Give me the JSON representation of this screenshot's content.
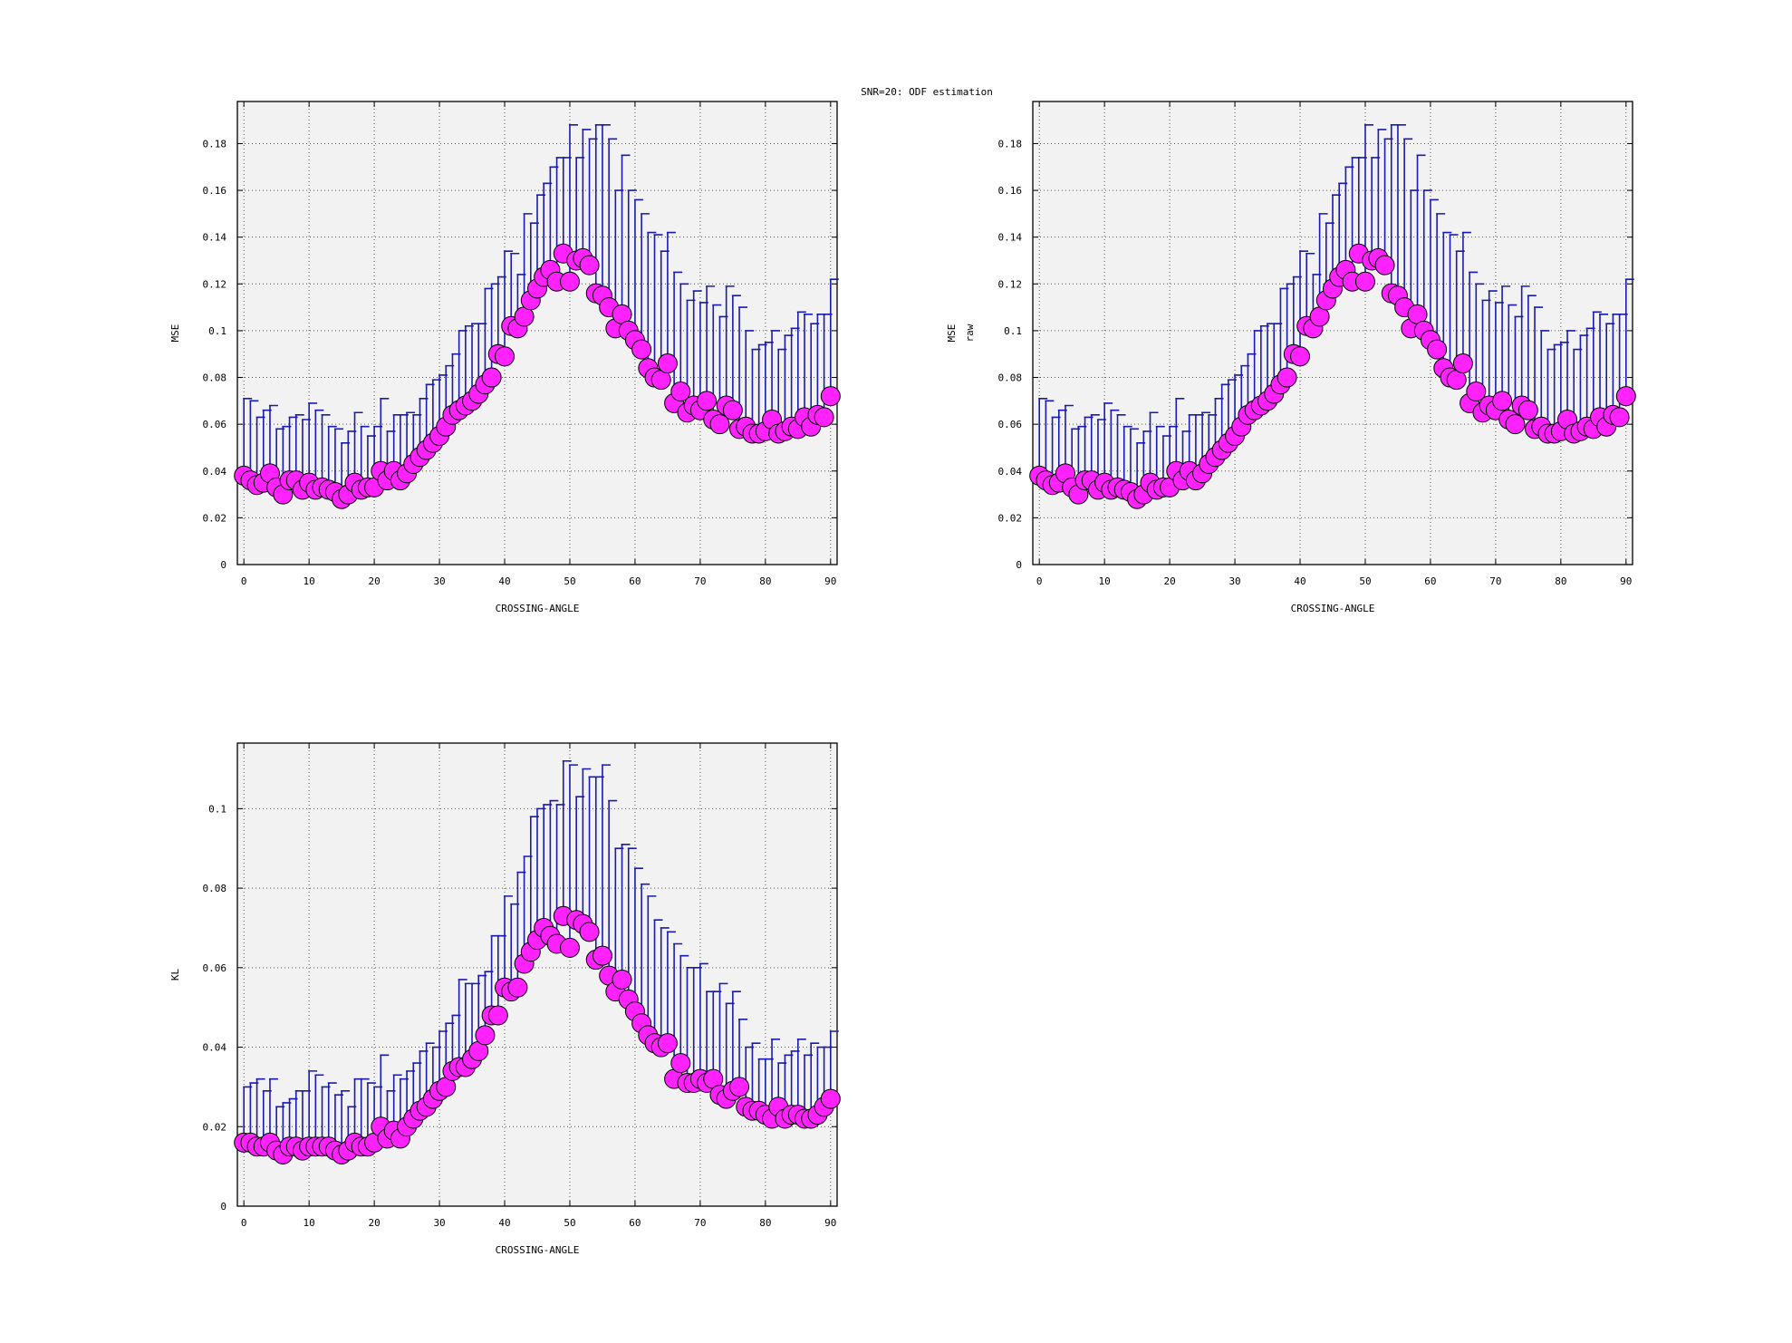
{
  "suptitle": "SNR=20: ODF estimation",
  "colors": {
    "marker": "#ff22ff",
    "errorbar": "#1a1ab0",
    "plot_bg": "#f2f2f2"
  },
  "chart_data": [
    {
      "type": "scatter",
      "title": "",
      "xlabel": "CROSSING-ANGLE",
      "ylabel": "MSE",
      "ylabel_sub": "",
      "xlim": [
        -1,
        91
      ],
      "ylim": [
        0,
        0.198
      ],
      "xticks": [
        0,
        10,
        20,
        30,
        40,
        50,
        60,
        70,
        80,
        90
      ],
      "yticks": [
        0,
        0.02,
        0.04,
        0.06,
        0.08,
        0.1,
        0.12,
        0.14,
        0.16,
        0.18
      ],
      "ytick_labels": [
        "0",
        "0.02",
        "0.04",
        "0.06",
        "0.08",
        "0.1",
        "0.12",
        "0.14",
        "0.16",
        "0.18"
      ],
      "grid": true,
      "x": [
        0,
        1,
        2,
        3,
        4,
        5,
        6,
        7,
        8,
        9,
        10,
        11,
        12,
        13,
        14,
        15,
        16,
        17,
        18,
        19,
        20,
        21,
        22,
        23,
        24,
        25,
        26,
        27,
        28,
        29,
        30,
        31,
        32,
        33,
        34,
        35,
        36,
        37,
        38,
        39,
        40,
        41,
        42,
        43,
        44,
        45,
        46,
        47,
        48,
        49,
        50,
        51,
        52,
        53,
        54,
        55,
        56,
        57,
        58,
        59,
        60,
        61,
        62,
        63,
        64,
        65,
        66,
        67,
        68,
        69,
        70,
        71,
        72,
        73,
        74,
        75,
        76,
        77,
        78,
        79,
        80,
        81,
        82,
        83,
        84,
        85,
        86,
        87,
        88,
        89,
        90
      ],
      "y": [
        0.038,
        0.036,
        0.034,
        0.035,
        0.039,
        0.033,
        0.03,
        0.036,
        0.036,
        0.032,
        0.035,
        0.032,
        0.033,
        0.032,
        0.031,
        0.028,
        0.03,
        0.035,
        0.032,
        0.033,
        0.033,
        0.04,
        0.036,
        0.04,
        0.036,
        0.039,
        0.043,
        0.046,
        0.049,
        0.052,
        0.055,
        0.059,
        0.064,
        0.066,
        0.068,
        0.07,
        0.073,
        0.077,
        0.08,
        0.09,
        0.089,
        0.102,
        0.101,
        0.106,
        0.113,
        0.118,
        0.123,
        0.126,
        0.121,
        0.133,
        0.121,
        0.13,
        0.131,
        0.128,
        0.116,
        0.115,
        0.11,
        0.101,
        0.107,
        0.1,
        0.096,
        0.092,
        0.084,
        0.08,
        0.079,
        0.086,
        0.069,
        0.074,
        0.065,
        0.068,
        0.066,
        0.07,
        0.062,
        0.06,
        0.068,
        0.066,
        0.058,
        0.059,
        0.056,
        0.056,
        0.057,
        0.062,
        0.056,
        0.057,
        0.059,
        0.058,
        0.063,
        0.059,
        0.064,
        0.063,
        0.072
      ],
      "yerr_upper": [
        0.071,
        0.07,
        0.063,
        0.066,
        0.068,
        0.058,
        0.059,
        0.063,
        0.064,
        0.062,
        0.069,
        0.066,
        0.064,
        0.059,
        0.058,
        0.052,
        0.057,
        0.065,
        0.059,
        0.055,
        0.059,
        0.071,
        0.057,
        0.064,
        0.064,
        0.065,
        0.064,
        0.071,
        0.077,
        0.079,
        0.081,
        0.085,
        0.09,
        0.1,
        0.102,
        0.103,
        0.103,
        0.118,
        0.12,
        0.123,
        0.134,
        0.133,
        0.124,
        0.15,
        0.146,
        0.158,
        0.163,
        0.17,
        0.174,
        0.174,
        0.188,
        0.174,
        0.186,
        0.182,
        0.188,
        0.188,
        0.182,
        0.16,
        0.175,
        0.16,
        0.156,
        0.15,
        0.142,
        0.141,
        0.134,
        0.142,
        0.125,
        0.12,
        0.113,
        0.117,
        0.112,
        0.119,
        0.111,
        0.106,
        0.119,
        0.115,
        0.11,
        0.1,
        0.092,
        0.094,
        0.095,
        0.1,
        0.092,
        0.098,
        0.101,
        0.108,
        0.107,
        0.103,
        0.107,
        0.107,
        0.122
      ]
    },
    {
      "type": "scatter",
      "title": "",
      "xlabel": "CROSSING-ANGLE",
      "ylabel": "MSE",
      "ylabel_sub": "raw",
      "xlim": [
        -1,
        91
      ],
      "ylim": [
        0,
        0.198
      ],
      "xticks": [
        0,
        10,
        20,
        30,
        40,
        50,
        60,
        70,
        80,
        90
      ],
      "yticks": [
        0,
        0.02,
        0.04,
        0.06,
        0.08,
        0.1,
        0.12,
        0.14,
        0.16,
        0.18
      ],
      "ytick_labels": [
        "0",
        "0.02",
        "0.04",
        "0.06",
        "0.08",
        "0.1",
        "0.12",
        "0.14",
        "0.16",
        "0.18"
      ],
      "grid": true,
      "x": [
        0,
        1,
        2,
        3,
        4,
        5,
        6,
        7,
        8,
        9,
        10,
        11,
        12,
        13,
        14,
        15,
        16,
        17,
        18,
        19,
        20,
        21,
        22,
        23,
        24,
        25,
        26,
        27,
        28,
        29,
        30,
        31,
        32,
        33,
        34,
        35,
        36,
        37,
        38,
        39,
        40,
        41,
        42,
        43,
        44,
        45,
        46,
        47,
        48,
        49,
        50,
        51,
        52,
        53,
        54,
        55,
        56,
        57,
        58,
        59,
        60,
        61,
        62,
        63,
        64,
        65,
        66,
        67,
        68,
        69,
        70,
        71,
        72,
        73,
        74,
        75,
        76,
        77,
        78,
        79,
        80,
        81,
        82,
        83,
        84,
        85,
        86,
        87,
        88,
        89,
        90
      ],
      "y": [
        0.038,
        0.036,
        0.034,
        0.035,
        0.039,
        0.033,
        0.03,
        0.036,
        0.036,
        0.032,
        0.035,
        0.032,
        0.033,
        0.032,
        0.031,
        0.028,
        0.03,
        0.035,
        0.032,
        0.033,
        0.033,
        0.04,
        0.036,
        0.04,
        0.036,
        0.039,
        0.043,
        0.046,
        0.049,
        0.052,
        0.055,
        0.059,
        0.064,
        0.066,
        0.068,
        0.07,
        0.073,
        0.077,
        0.08,
        0.09,
        0.089,
        0.102,
        0.101,
        0.106,
        0.113,
        0.118,
        0.123,
        0.126,
        0.121,
        0.133,
        0.121,
        0.13,
        0.131,
        0.128,
        0.116,
        0.115,
        0.11,
        0.101,
        0.107,
        0.1,
        0.096,
        0.092,
        0.084,
        0.08,
        0.079,
        0.086,
        0.069,
        0.074,
        0.065,
        0.068,
        0.066,
        0.07,
        0.062,
        0.06,
        0.068,
        0.066,
        0.058,
        0.059,
        0.056,
        0.056,
        0.057,
        0.062,
        0.056,
        0.057,
        0.059,
        0.058,
        0.063,
        0.059,
        0.064,
        0.063,
        0.072
      ],
      "yerr_upper": [
        0.071,
        0.07,
        0.063,
        0.066,
        0.068,
        0.058,
        0.059,
        0.063,
        0.064,
        0.062,
        0.069,
        0.066,
        0.064,
        0.059,
        0.058,
        0.052,
        0.057,
        0.065,
        0.059,
        0.055,
        0.059,
        0.071,
        0.057,
        0.064,
        0.064,
        0.065,
        0.064,
        0.071,
        0.077,
        0.079,
        0.081,
        0.085,
        0.09,
        0.1,
        0.102,
        0.103,
        0.103,
        0.118,
        0.12,
        0.123,
        0.134,
        0.133,
        0.124,
        0.15,
        0.146,
        0.158,
        0.163,
        0.17,
        0.174,
        0.174,
        0.188,
        0.174,
        0.186,
        0.182,
        0.188,
        0.188,
        0.182,
        0.16,
        0.175,
        0.16,
        0.156,
        0.15,
        0.142,
        0.141,
        0.134,
        0.142,
        0.125,
        0.12,
        0.113,
        0.117,
        0.112,
        0.119,
        0.111,
        0.106,
        0.119,
        0.115,
        0.11,
        0.1,
        0.092,
        0.094,
        0.095,
        0.1,
        0.092,
        0.098,
        0.101,
        0.108,
        0.107,
        0.103,
        0.107,
        0.107,
        0.122
      ]
    },
    {
      "type": "scatter",
      "title": "",
      "xlabel": "CROSSING-ANGLE",
      "ylabel": "KL",
      "ylabel_sub": "",
      "xlim": [
        -1,
        91
      ],
      "ylim": [
        0,
        0.1165
      ],
      "xticks": [
        0,
        10,
        20,
        30,
        40,
        50,
        60,
        70,
        80,
        90
      ],
      "yticks": [
        0,
        0.02,
        0.04,
        0.06,
        0.08,
        0.1
      ],
      "ytick_labels": [
        "0",
        "0.02",
        "0.04",
        "0.06",
        "0.08",
        "0.1"
      ],
      "grid": true,
      "x": [
        0,
        1,
        2,
        3,
        4,
        5,
        6,
        7,
        8,
        9,
        10,
        11,
        12,
        13,
        14,
        15,
        16,
        17,
        18,
        19,
        20,
        21,
        22,
        23,
        24,
        25,
        26,
        27,
        28,
        29,
        30,
        31,
        32,
        33,
        34,
        35,
        36,
        37,
        38,
        39,
        40,
        41,
        42,
        43,
        44,
        45,
        46,
        47,
        48,
        49,
        50,
        51,
        52,
        53,
        54,
        55,
        56,
        57,
        58,
        59,
        60,
        61,
        62,
        63,
        64,
        65,
        66,
        67,
        68,
        69,
        70,
        71,
        72,
        73,
        74,
        75,
        76,
        77,
        78,
        79,
        80,
        81,
        82,
        83,
        84,
        85,
        86,
        87,
        88,
        89,
        90
      ],
      "y": [
        0.016,
        0.016,
        0.015,
        0.015,
        0.016,
        0.014,
        0.013,
        0.015,
        0.015,
        0.014,
        0.015,
        0.015,
        0.015,
        0.015,
        0.014,
        0.013,
        0.014,
        0.016,
        0.015,
        0.015,
        0.016,
        0.02,
        0.017,
        0.019,
        0.017,
        0.02,
        0.022,
        0.024,
        0.025,
        0.027,
        0.029,
        0.03,
        0.034,
        0.035,
        0.035,
        0.037,
        0.039,
        0.043,
        0.048,
        0.048,
        0.055,
        0.054,
        0.055,
        0.061,
        0.064,
        0.067,
        0.07,
        0.068,
        0.066,
        0.073,
        0.065,
        0.072,
        0.071,
        0.069,
        0.062,
        0.063,
        0.058,
        0.054,
        0.057,
        0.052,
        0.049,
        0.046,
        0.043,
        0.041,
        0.04,
        0.041,
        0.032,
        0.036,
        0.031,
        0.031,
        0.032,
        0.031,
        0.032,
        0.028,
        0.027,
        0.029,
        0.03,
        0.025,
        0.024,
        0.024,
        0.023,
        0.022,
        0.025,
        0.022,
        0.023,
        0.023,
        0.022,
        0.022,
        0.023,
        0.025,
        0.027
      ],
      "yerr_upper": [
        0.03,
        0.031,
        0.032,
        0.029,
        0.032,
        0.025,
        0.026,
        0.027,
        0.029,
        0.029,
        0.034,
        0.033,
        0.03,
        0.031,
        0.028,
        0.029,
        0.025,
        0.032,
        0.032,
        0.031,
        0.03,
        0.038,
        0.029,
        0.033,
        0.032,
        0.034,
        0.036,
        0.039,
        0.041,
        0.04,
        0.044,
        0.046,
        0.048,
        0.057,
        0.056,
        0.056,
        0.058,
        0.059,
        0.068,
        0.068,
        0.078,
        0.076,
        0.084,
        0.088,
        0.098,
        0.1,
        0.101,
        0.102,
        0.101,
        0.112,
        0.111,
        0.103,
        0.11,
        0.108,
        0.108,
        0.111,
        0.102,
        0.09,
        0.091,
        0.09,
        0.085,
        0.081,
        0.078,
        0.072,
        0.07,
        0.069,
        0.066,
        0.063,
        0.06,
        0.06,
        0.061,
        0.054,
        0.054,
        0.056,
        0.051,
        0.054,
        0.047,
        0.04,
        0.041,
        0.037,
        0.037,
        0.042,
        0.036,
        0.038,
        0.039,
        0.042,
        0.038,
        0.041,
        0.04,
        0.04,
        0.044
      ]
    }
  ]
}
